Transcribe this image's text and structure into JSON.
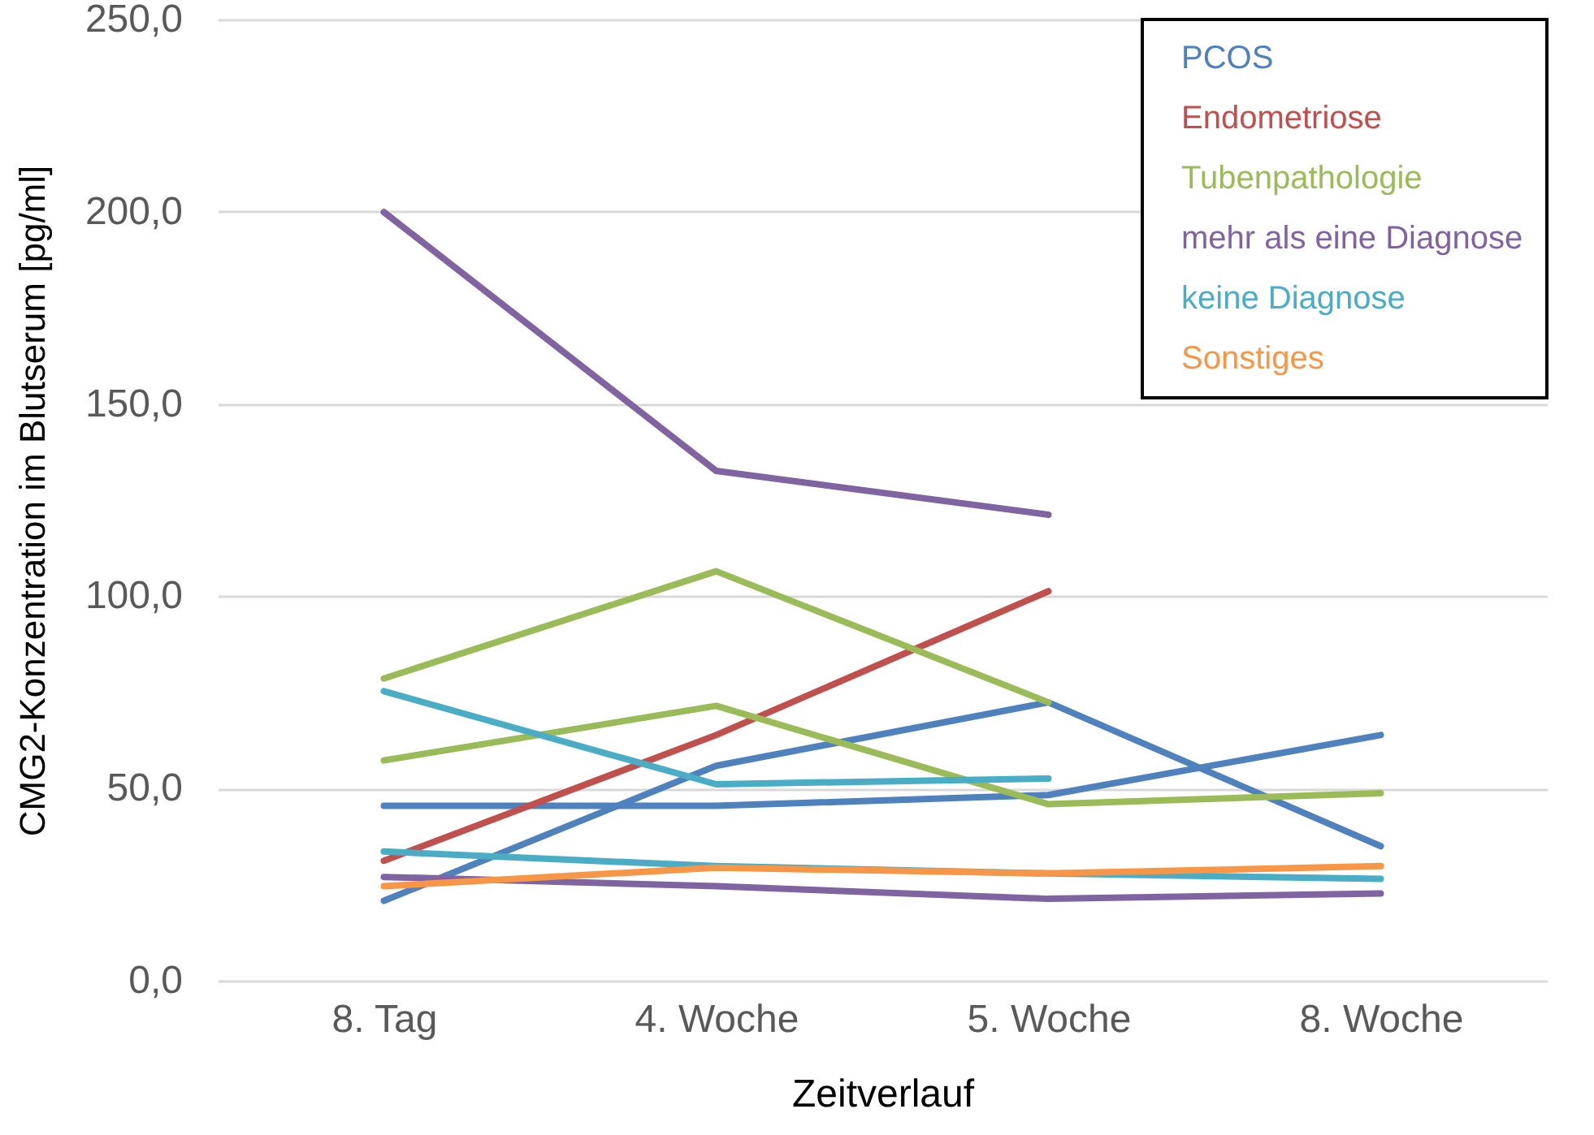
{
  "chart_data": {
    "type": "line",
    "xlabel": "Zeitverlauf",
    "ylabel": "CMG2-Konzentration im Blutserum [pg/ml]",
    "categories": [
      "8. Tag",
      "4. Woche",
      "5. Woche",
      "8. Woche"
    ],
    "ylim": [
      0,
      250
    ],
    "yticks": [
      {
        "value": 0,
        "label": "0,0"
      },
      {
        "value": 50,
        "label": "50,0"
      },
      {
        "value": 100,
        "label": "100,0"
      },
      {
        "value": 150,
        "label": "150,0"
      },
      {
        "value": 200,
        "label": "200,0"
      },
      {
        "value": 250,
        "label": "250,0"
      }
    ],
    "grid": "y",
    "legend": "top right",
    "line_style": "solid",
    "marker": "none",
    "series": [
      {
        "name": "PCOS",
        "color": "#4f81bd",
        "values": [
          45.5,
          45.5,
          48.3,
          63.9
        ]
      },
      {
        "color": "#4f81bd",
        "values": [
          20.8,
          55.9,
          72.4,
          35.0
        ]
      },
      {
        "name": "Endometriose",
        "color": "#c0504d",
        "values": [
          31.2,
          63.9,
          101.3,
          null
        ]
      },
      {
        "name": "Tubenpathologie",
        "color": "#9bbb59",
        "values": [
          78.6,
          106.5,
          72.4,
          null
        ]
      },
      {
        "color": "#9bbb59",
        "values": [
          57.3,
          71.5,
          45.9,
          48.8
        ]
      },
      {
        "name": "mehr als eine Diagnose",
        "color": "#8064a2",
        "values": [
          199.9,
          132.6,
          121.2,
          null
        ]
      },
      {
        "color": "#8064a2",
        "values": [
          27.0,
          24.6,
          21.3,
          22.7
        ]
      },
      {
        "name": "keine Diagnose",
        "color": "#4bacc6",
        "values": [
          75.3,
          51.1,
          52.6,
          null
        ]
      },
      {
        "color": "#4bacc6",
        "values": [
          33.6,
          29.8,
          27.9,
          26.5
        ]
      },
      {
        "name": "Sonstiges",
        "color": "#f79646",
        "values": [
          24.6,
          29.4,
          27.9,
          29.8
        ]
      }
    ]
  }
}
